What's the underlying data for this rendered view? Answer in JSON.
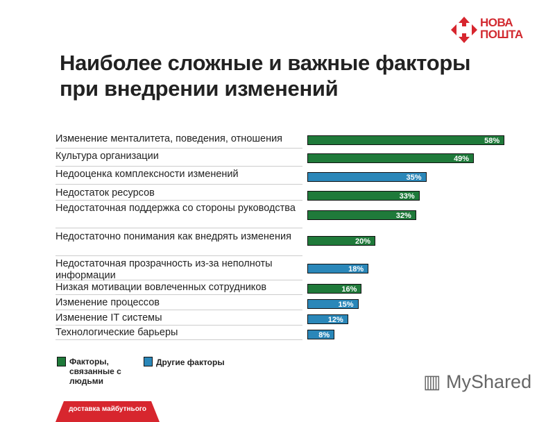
{
  "logo": {
    "line1": "НОВА",
    "line2": "ПОШТА",
    "color": "#d7262e"
  },
  "title_line1": "Наиболее сложные и важные факторы",
  "title_line2": "при внедрении изменений",
  "chart_data": {
    "type": "bar",
    "orientation": "horizontal",
    "unit": "%",
    "categories": [
      "Изменение менталитета, поведения, отношения",
      "Культура организации",
      "Недооценка комплексности изменений",
      "Недостаток ресурсов",
      "Недостаточная поддержка со стороны руководства",
      "Недостаточно понимания как внедрять изменения",
      "Недостаточная прозрачность из-за неполноты информации",
      "Низкая мотивации вовлеченных сотрудников",
      "Изменение процессов",
      "Изменение IT системы",
      "Технологические барьеры"
    ],
    "values": [
      58,
      49,
      35,
      33,
      32,
      20,
      18,
      16,
      15,
      12,
      8
    ],
    "labels": [
      "58%",
      "49%",
      "35%",
      "33%",
      "32%",
      "20%",
      "18%",
      "16%",
      "15%",
      "12%",
      "8%"
    ],
    "groups": [
      "people",
      "people",
      "other",
      "people",
      "people",
      "people",
      "other",
      "people",
      "other",
      "other",
      "other"
    ],
    "legend": [
      {
        "key": "people",
        "name": "Факторы, связанные с людьми",
        "color": "#1f7a3a"
      },
      {
        "key": "other",
        "name": "Другие факторы",
        "color": "#2a87b9"
      }
    ]
  },
  "footer": {
    "ribbon": "доставка майбутнього",
    "watermark": "MyShared"
  }
}
